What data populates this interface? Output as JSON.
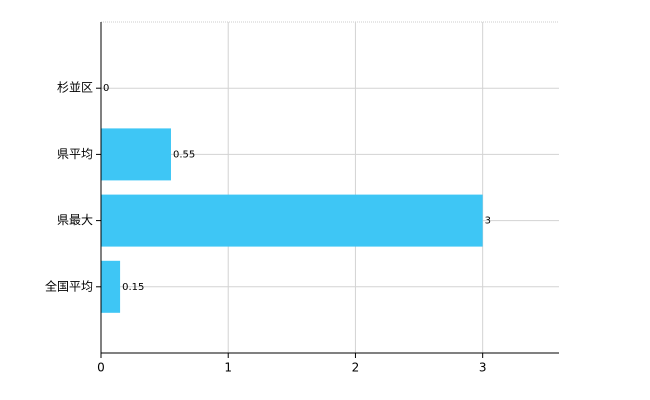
{
  "chart_data": {
    "type": "bar",
    "orientation": "horizontal",
    "categories": [
      "杉並区",
      "県平均",
      "県最大",
      "全国平均"
    ],
    "values": [
      0,
      0.55,
      3,
      0.15
    ],
    "color": "#3ec6f5",
    "xlim": [
      0,
      3.6
    ],
    "xticks": [
      0,
      1,
      2,
      3
    ],
    "grid": true
  }
}
